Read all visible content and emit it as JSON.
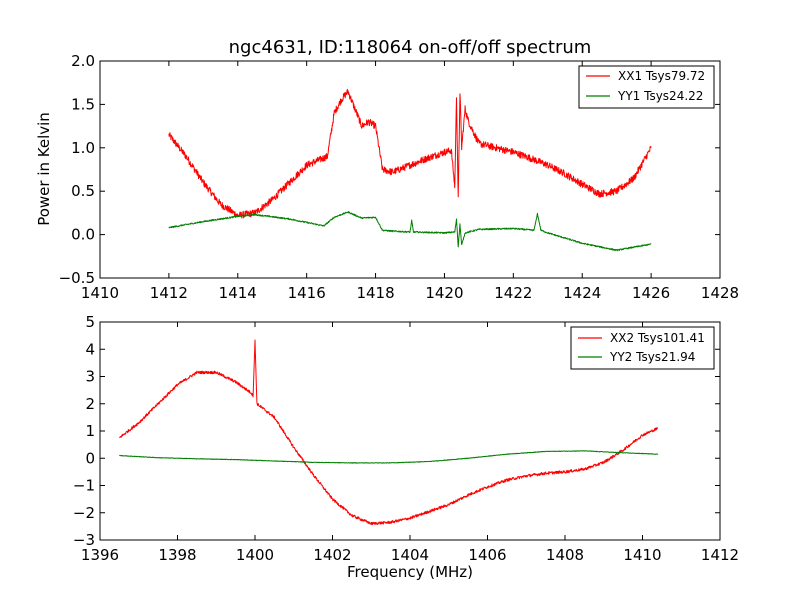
{
  "title": "ngc4631, ID:118064 on-off/off spectrum",
  "colors": {
    "red": "#ff0000",
    "green": "#007f00"
  },
  "chart_data": [
    {
      "type": "line",
      "xlabel": "",
      "ylabel": "Power in Kelvin",
      "xlim": [
        1410,
        1428
      ],
      "ylim": [
        -0.5,
        2.0
      ],
      "xticks": [
        1410,
        1412,
        1414,
        1416,
        1418,
        1420,
        1422,
        1424,
        1426,
        1428
      ],
      "yticks": [
        -0.5,
        0.0,
        0.5,
        1.0,
        1.5,
        2.0
      ],
      "xtick_labels": [
        "1410",
        "1412",
        "1414",
        "1416",
        "1418",
        "1420",
        "1422",
        "1424",
        "1426",
        "1428"
      ],
      "ytick_labels": [
        "−0.5",
        "0.0",
        "0.5",
        "1.0",
        "1.5",
        "2.0"
      ],
      "legend_position": "top-right",
      "series": [
        {
          "name": "XX1 Tsys79.72",
          "color": "#ff0000",
          "noise": 0.04,
          "x": [
            1412.0,
            1412.1,
            1412.5,
            1413.0,
            1413.5,
            1414.0,
            1414.5,
            1415.0,
            1415.5,
            1416.0,
            1416.3,
            1416.6,
            1416.8,
            1417.0,
            1417.2,
            1417.4,
            1417.6,
            1417.8,
            1418.0,
            1418.2,
            1418.5,
            1419.0,
            1419.5,
            1420.0,
            1420.2,
            1420.3,
            1420.35,
            1420.4,
            1420.45,
            1420.5,
            1420.6,
            1420.7,
            1421.0,
            1421.5,
            1422.0,
            1422.5,
            1423.0,
            1423.5,
            1424.0,
            1424.5,
            1425.0,
            1425.5,
            1426.0
          ],
          "y": [
            1.15,
            1.1,
            0.9,
            0.6,
            0.35,
            0.22,
            0.25,
            0.4,
            0.6,
            0.8,
            0.85,
            0.9,
            1.4,
            1.55,
            1.65,
            1.45,
            1.25,
            1.3,
            1.25,
            0.75,
            0.72,
            0.8,
            0.88,
            0.95,
            0.97,
            0.55,
            1.6,
            0.4,
            1.65,
            1.0,
            1.45,
            1.3,
            1.05,
            1.0,
            0.95,
            0.88,
            0.8,
            0.7,
            0.58,
            0.47,
            0.5,
            0.65,
            1.0
          ]
        },
        {
          "name": "YY1 Tsys24.22",
          "color": "#007f00",
          "noise": 0.008,
          "x": [
            1412.0,
            1413.0,
            1414.0,
            1414.5,
            1415.5,
            1416.5,
            1416.8,
            1417.2,
            1417.6,
            1418.0,
            1418.2,
            1418.5,
            1419.0,
            1419.05,
            1419.1,
            1420.0,
            1420.3,
            1420.35,
            1420.4,
            1420.45,
            1420.5,
            1420.6,
            1421.0,
            1422.0,
            1422.6,
            1422.7,
            1422.8,
            1423.0,
            1424.0,
            1425.0,
            1426.0
          ],
          "y": [
            0.08,
            0.15,
            0.21,
            0.23,
            0.18,
            0.1,
            0.2,
            0.26,
            0.19,
            0.2,
            0.05,
            0.04,
            0.03,
            0.16,
            0.03,
            0.02,
            0.03,
            0.18,
            -0.14,
            0.12,
            -0.12,
            0.02,
            0.06,
            0.07,
            0.05,
            0.24,
            0.05,
            0.02,
            -0.1,
            -0.18,
            -0.11
          ]
        }
      ]
    },
    {
      "type": "line",
      "xlabel": "Frequency (MHz)",
      "ylabel": "",
      "xlim": [
        1396,
        1412
      ],
      "ylim": [
        -3,
        5
      ],
      "xticks": [
        1396,
        1398,
        1400,
        1402,
        1404,
        1406,
        1408,
        1410,
        1412
      ],
      "yticks": [
        -3,
        -2,
        -1,
        0,
        1,
        2,
        3,
        4,
        5
      ],
      "xtick_labels": [
        "1396",
        "1398",
        "1400",
        "1402",
        "1404",
        "1406",
        "1408",
        "1410",
        "1412"
      ],
      "ytick_labels": [
        "−3",
        "−2",
        "−1",
        "0",
        "1",
        "2",
        "3",
        "4",
        "5"
      ],
      "legend_position": "top-right",
      "series": [
        {
          "name": "XX2 Tsys101.41",
          "color": "#ff0000",
          "noise": 0.05,
          "x": [
            1396.5,
            1397.0,
            1397.5,
            1398.0,
            1398.5,
            1399.0,
            1399.5,
            1399.9,
            1399.95,
            1400.0,
            1400.05,
            1400.5,
            1401.0,
            1401.5,
            1402.0,
            1402.5,
            1403.0,
            1403.5,
            1404.0,
            1404.5,
            1405.0,
            1405.5,
            1406.0,
            1406.5,
            1407.0,
            1407.5,
            1408.0,
            1408.5,
            1409.0,
            1409.5,
            1410.0,
            1410.4
          ],
          "y": [
            0.75,
            1.3,
            2.0,
            2.7,
            3.15,
            3.15,
            2.8,
            2.4,
            2.3,
            4.3,
            2.0,
            1.5,
            0.4,
            -0.6,
            -1.5,
            -2.1,
            -2.4,
            -2.35,
            -2.2,
            -1.95,
            -1.7,
            -1.35,
            -1.05,
            -0.8,
            -0.65,
            -0.55,
            -0.5,
            -0.4,
            -0.15,
            0.3,
            0.85,
            1.1
          ]
        },
        {
          "name": "YY2 Tsys21.94",
          "color": "#007f00",
          "noise": 0.01,
          "x": [
            1396.5,
            1397.5,
            1398.5,
            1399.5,
            1400.5,
            1401.5,
            1402.5,
            1403.5,
            1404.5,
            1405.5,
            1406.5,
            1407.5,
            1408.5,
            1409.5,
            1410.4
          ],
          "y": [
            0.1,
            0.02,
            -0.02,
            -0.05,
            -0.1,
            -0.15,
            -0.17,
            -0.17,
            -0.12,
            0.0,
            0.15,
            0.25,
            0.27,
            0.2,
            0.15
          ]
        }
      ]
    }
  ]
}
